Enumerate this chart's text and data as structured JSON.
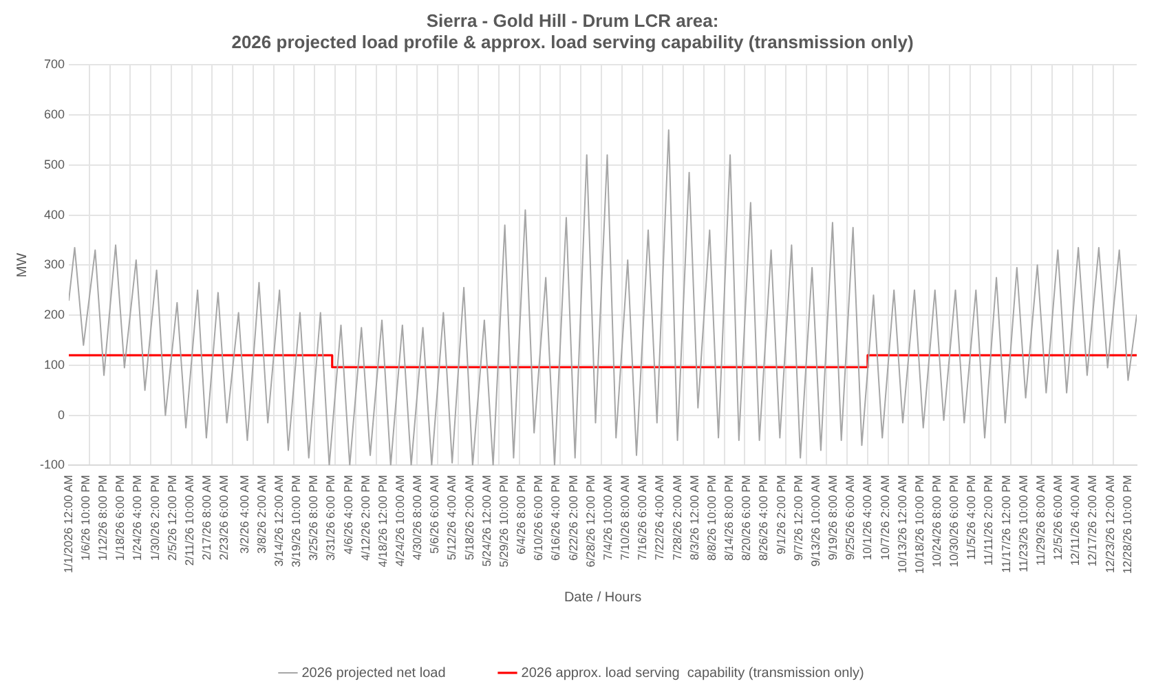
{
  "chart_data": {
    "type": "line",
    "title": [
      "Sierra - Gold Hill - Drum LCR area:",
      "2026 projected load profile & approx. load serving capability (transmission only)"
    ],
    "xlabel": "Date / Hours",
    "ylabel": "MW",
    "xlim": [
      "2026-01-01T00:00",
      "2026-12-31T23:00"
    ],
    "ylim": [
      -100,
      700
    ],
    "yticks": [
      -100,
      0,
      100,
      200,
      300,
      400,
      500,
      600,
      700
    ],
    "xticks": [
      {
        "value": "2026-01-01T00:00",
        "label": "1/1/2026 12:00 AM"
      },
      {
        "value": "2026-01-06T22:00",
        "label": "1/6/26 10:00 PM"
      },
      {
        "value": "2026-01-12T20:00",
        "label": "1/12/26 8:00 PM"
      },
      {
        "value": "2026-01-18T18:00",
        "label": "1/18/26 6:00 PM"
      },
      {
        "value": "2026-01-24T16:00",
        "label": "1/24/26 4:00 PM"
      },
      {
        "value": "2026-01-30T14:00",
        "label": "1/30/26 2:00 PM"
      },
      {
        "value": "2026-02-05T12:00",
        "label": "2/5/26 12:00 PM"
      },
      {
        "value": "2026-02-11T10:00",
        "label": "2/11/26 10:00 AM"
      },
      {
        "value": "2026-02-17T08:00",
        "label": "2/17/26 8:00 AM"
      },
      {
        "value": "2026-02-23T06:00",
        "label": "2/23/26 6:00 AM"
      },
      {
        "value": "2026-03-02T04:00",
        "label": "3/2/26 4:00 AM"
      },
      {
        "value": "2026-03-08T02:00",
        "label": "3/8/26 2:00 AM"
      },
      {
        "value": "2026-03-14T00:00",
        "label": "3/14/26 12:00 AM"
      },
      {
        "value": "2026-03-19T22:00",
        "label": "3/19/26 10:00 PM"
      },
      {
        "value": "2026-03-25T20:00",
        "label": "3/25/26 8:00 PM"
      },
      {
        "value": "2026-03-31T18:00",
        "label": "3/31/26 6:00 PM"
      },
      {
        "value": "2026-04-06T16:00",
        "label": "4/6/26 4:00 PM"
      },
      {
        "value": "2026-04-12T14:00",
        "label": "4/12/26 2:00 PM"
      },
      {
        "value": "2026-04-18T12:00",
        "label": "4/18/26 12:00 PM"
      },
      {
        "value": "2026-04-24T10:00",
        "label": "4/24/26 10:00 AM"
      },
      {
        "value": "2026-04-30T08:00",
        "label": "4/30/26 8:00 AM"
      },
      {
        "value": "2026-05-06T06:00",
        "label": "5/6/26 6:00 AM"
      },
      {
        "value": "2026-05-12T04:00",
        "label": "5/12/26 4:00 AM"
      },
      {
        "value": "2026-05-18T02:00",
        "label": "5/18/26 2:00 AM"
      },
      {
        "value": "2026-05-24T00:00",
        "label": "5/24/26 12:00 AM"
      },
      {
        "value": "2026-05-29T22:00",
        "label": "5/29/26 10:00 PM"
      },
      {
        "value": "2026-06-04T20:00",
        "label": "6/4/26 8:00 PM"
      },
      {
        "value": "2026-06-10T18:00",
        "label": "6/10/26 6:00 PM"
      },
      {
        "value": "2026-06-16T16:00",
        "label": "6/16/26 4:00 PM"
      },
      {
        "value": "2026-06-22T14:00",
        "label": "6/22/26 2:00 PM"
      },
      {
        "value": "2026-06-28T12:00",
        "label": "6/28/26 12:00 PM"
      },
      {
        "value": "2026-07-04T10:00",
        "label": "7/4/26 10:00 AM"
      },
      {
        "value": "2026-07-10T08:00",
        "label": "7/10/26 8:00 AM"
      },
      {
        "value": "2026-07-16T06:00",
        "label": "7/16/26 6:00 AM"
      },
      {
        "value": "2026-07-22T04:00",
        "label": "7/22/26 4:00 AM"
      },
      {
        "value": "2026-07-28T02:00",
        "label": "7/28/26 2:00 AM"
      },
      {
        "value": "2026-08-03T00:00",
        "label": "8/3/26 12:00 AM"
      },
      {
        "value": "2026-08-08T22:00",
        "label": "8/8/26 10:00 PM"
      },
      {
        "value": "2026-08-14T20:00",
        "label": "8/14/26 8:00 PM"
      },
      {
        "value": "2026-08-20T18:00",
        "label": "8/20/26 6:00 PM"
      },
      {
        "value": "2026-08-26T16:00",
        "label": "8/26/26 4:00 PM"
      },
      {
        "value": "2026-09-01T14:00",
        "label": "9/1/26 2:00 PM"
      },
      {
        "value": "2026-09-07T12:00",
        "label": "9/7/26 12:00 PM"
      },
      {
        "value": "2026-09-13T10:00",
        "label": "9/13/26 10:00 AM"
      },
      {
        "value": "2026-09-19T08:00",
        "label": "9/19/26 8:00 AM"
      },
      {
        "value": "2026-09-25T06:00",
        "label": "9/25/26 6:00 AM"
      },
      {
        "value": "2026-10-01T04:00",
        "label": "10/1/26 4:00 AM"
      },
      {
        "value": "2026-10-07T02:00",
        "label": "10/7/26 2:00 AM"
      },
      {
        "value": "2026-10-13T00:00",
        "label": "10/13/26 12:00 AM"
      },
      {
        "value": "2026-10-18T22:00",
        "label": "10/18/26 10:00 PM"
      },
      {
        "value": "2026-10-24T20:00",
        "label": "10/24/26 8:00 PM"
      },
      {
        "value": "2026-10-30T18:00",
        "label": "10/30/26 6:00 PM"
      },
      {
        "value": "2026-11-05T16:00",
        "label": "11/5/26 4:00 PM"
      },
      {
        "value": "2026-11-11T14:00",
        "label": "11/11/26 2:00 PM"
      },
      {
        "value": "2026-11-17T12:00",
        "label": "11/17/26 12:00 PM"
      },
      {
        "value": "2026-11-23T10:00",
        "label": "11/23/26 10:00 AM"
      },
      {
        "value": "2026-11-29T08:00",
        "label": "11/29/26 8:00 AM"
      },
      {
        "value": "2026-12-05T06:00",
        "label": "12/5/26 6:00 AM"
      },
      {
        "value": "2026-12-11T04:00",
        "label": "12/11/26 4:00 AM"
      },
      {
        "value": "2026-12-17T02:00",
        "label": "12/17/26 2:00 AM"
      },
      {
        "value": "2026-12-23T00:00",
        "label": "12/23/26 12:00 AM"
      },
      {
        "value": "2026-12-28T22:00",
        "label": "12/28/26 10:00 PM"
      },
      {
        "value": "2026-01-08",
        "label": null
      },
      {
        "value": "2026-01-15",
        "label": null
      },
      {
        "value": "2026-01-22",
        "label": null
      },
      {
        "value": "2026-01-29",
        "label": null
      },
      {
        "value": "2026-02-05",
        "label": null
      },
      {
        "value": "2026-02-12",
        "label": null
      },
      {
        "value": "2026-02-19",
        "label": null
      },
      {
        "value": "2026-02-26",
        "label": null
      },
      {
        "value": "2026-03-05",
        "label": null
      },
      {
        "value": "2026-03-12",
        "label": null
      },
      {
        "value": "2026-03-19",
        "label": null
      },
      {
        "value": "2026-03-26",
        "label": null
      },
      {
        "value": "2026-04-02",
        "label": null
      },
      {
        "value": "2026-04-09",
        "label": null
      },
      {
        "value": "2026-04-16",
        "label": null
      },
      {
        "value": "2026-04-23",
        "label": null
      },
      {
        "value": "2026-04-30",
        "label": null
      },
      {
        "value": "2026-05-07",
        "label": null
      },
      {
        "value": "2026-05-14",
        "label": null
      },
      {
        "value": "2026-05-21",
        "label": null
      },
      {
        "value": "2026-05-28",
        "label": null
      },
      {
        "value": "2026-06-04",
        "label": null
      },
      {
        "value": "2026-06-11",
        "label": null
      },
      {
        "value": "2026-06-18",
        "label": null
      },
      {
        "value": "2026-06-25",
        "label": null
      },
      {
        "value": "2026-07-02",
        "label": null
      },
      {
        "value": "2026-07-09",
        "label": null
      },
      {
        "value": "2026-07-16",
        "label": null
      },
      {
        "value": "2026-07-23",
        "label": null
      },
      {
        "value": "2026-07-30",
        "label": null
      },
      {
        "value": "2026-08-06",
        "label": null
      },
      {
        "value": "2026-08-13",
        "label": null
      },
      {
        "value": "2026-08-20",
        "label": null
      },
      {
        "value": "2026-08-27",
        "label": null
      },
      {
        "value": "2026-09-03",
        "label": null
      },
      {
        "value": "2026-09-10",
        "label": null
      },
      {
        "value": "2026-09-17",
        "label": null
      },
      {
        "value": "2026-09-24",
        "label": null
      },
      {
        "value": "2026-10-01",
        "label": null
      },
      {
        "value": "2026-10-08",
        "label": null
      },
      {
        "value": "2026-10-15",
        "label": null
      },
      {
        "value": "2026-10-22",
        "label": null
      },
      {
        "value": "2026-10-29",
        "label": null
      },
      {
        "value": "2026-11-05",
        "label": null
      },
      {
        "value": "2026-11-12",
        "label": null
      },
      {
        "value": "2026-11-19",
        "label": null
      },
      {
        "value": "2026-11-26",
        "label": null
      },
      {
        "value": "2026-12-03",
        "label": null
      },
      {
        "value": "2026-12-10",
        "label": null
      },
      {
        "value": "2026-12-17",
        "label": null
      },
      {
        "value": "2026-12-24",
        "label": null
      }
    ],
    "grid": true,
    "legend": "bottom",
    "marker": "none",
    "series": [
      {
        "name": "2026 projected net load",
        "color": "#a6a6a6",
        "x": [
          "2026-01-01",
          "2026-01-03",
          "2026-01-06",
          "2026-01-10",
          "2026-01-13",
          "2026-01-17",
          "2026-01-20",
          "2026-01-24",
          "2026-01-27",
          "2026-01-31",
          "2026-02-03",
          "2026-02-07",
          "2026-02-10",
          "2026-02-14",
          "2026-02-17",
          "2026-02-21",
          "2026-02-24",
          "2026-02-28",
          "2026-03-03",
          "2026-03-07",
          "2026-03-10",
          "2026-03-14",
          "2026-03-17",
          "2026-03-21",
          "2026-03-24",
          "2026-03-28",
          "2026-03-31",
          "2026-04-04",
          "2026-04-07",
          "2026-04-11",
          "2026-04-14",
          "2026-04-18",
          "2026-04-21",
          "2026-04-25",
          "2026-04-28",
          "2026-05-02",
          "2026-05-05",
          "2026-05-09",
          "2026-05-12",
          "2026-05-16",
          "2026-05-19",
          "2026-05-23",
          "2026-05-26",
          "2026-05-30",
          "2026-06-02",
          "2026-06-06",
          "2026-06-09",
          "2026-06-13",
          "2026-06-16",
          "2026-06-20",
          "2026-06-23",
          "2026-06-27",
          "2026-06-30",
          "2026-07-04",
          "2026-07-07",
          "2026-07-11",
          "2026-07-14",
          "2026-07-18",
          "2026-07-21",
          "2026-07-25",
          "2026-07-28",
          "2026-08-01",
          "2026-08-04",
          "2026-08-08",
          "2026-08-11",
          "2026-08-15",
          "2026-08-18",
          "2026-08-22",
          "2026-08-25",
          "2026-08-29",
          "2026-09-01",
          "2026-09-05",
          "2026-09-08",
          "2026-09-12",
          "2026-09-15",
          "2026-09-19",
          "2026-09-22",
          "2026-09-26",
          "2026-09-29",
          "2026-10-03",
          "2026-10-06",
          "2026-10-10",
          "2026-10-13",
          "2026-10-17",
          "2026-10-20",
          "2026-10-24",
          "2026-10-27",
          "2026-10-31",
          "2026-11-03",
          "2026-11-07",
          "2026-11-10",
          "2026-11-14",
          "2026-11-17",
          "2026-11-21",
          "2026-11-24",
          "2026-11-28",
          "2026-12-01",
          "2026-12-05",
          "2026-12-08",
          "2026-12-12",
          "2026-12-15",
          "2026-12-19",
          "2026-12-22",
          "2026-12-26",
          "2026-12-29",
          "2026-12-31T23:00"
        ],
        "values": [
          230,
          335,
          140,
          330,
          80,
          340,
          95,
          310,
          50,
          290,
          0,
          225,
          -25,
          250,
          -45,
          245,
          -15,
          205,
          -50,
          265,
          -15,
          250,
          -70,
          205,
          -85,
          205,
          -100,
          180,
          -100,
          175,
          -80,
          190,
          -100,
          180,
          -100,
          175,
          -100,
          205,
          -95,
          255,
          -100,
          190,
          -100,
          380,
          -85,
          410,
          -35,
          275,
          -100,
          395,
          -85,
          520,
          -15,
          520,
          -45,
          310,
          -80,
          370,
          -15,
          570,
          -50,
          485,
          15,
          370,
          -45,
          520,
          -50,
          425,
          -50,
          330,
          -45,
          340,
          -85,
          295,
          -70,
          385,
          -50,
          375,
          -60,
          240,
          -45,
          250,
          -15,
          250,
          -25,
          250,
          -10,
          250,
          -15,
          250,
          -45,
          275,
          -15,
          295,
          35,
          300,
          45,
          330,
          45,
          335,
          80,
          335,
          95,
          330,
          70,
          200
        ]
      },
      {
        "name": "2026 approx. load serving  capability (transmission only)",
        "color": "#ff0000",
        "type": "step",
        "x": [
          "2026-01-01T00:00",
          "2026-04-01T00:00",
          "2026-10-01T00:00",
          "2026-12-31T23:00"
        ],
        "values": [
          120,
          96,
          120,
          120
        ]
      }
    ]
  }
}
